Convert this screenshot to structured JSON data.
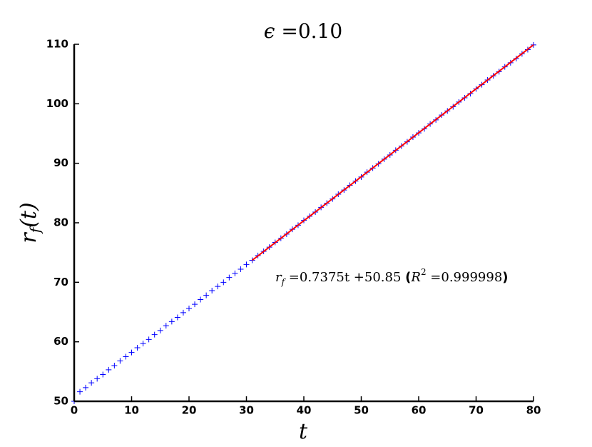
{
  "chart_data": {
    "type": "scatter",
    "title_parts": [
      "ϵ",
      " =0.10"
    ],
    "xlabel": "t",
    "ylabel_parts": [
      "r",
      "f",
      "(t)"
    ],
    "annotation_parts": [
      "r",
      "f",
      " =0.7375t +50.85 ",
      "(",
      "R",
      "2",
      " =0.999998",
      ")"
    ],
    "xlim": [
      0,
      80
    ],
    "ylim": [
      50,
      110
    ],
    "xticks": [
      0,
      10,
      20,
      30,
      40,
      50,
      60,
      70,
      80
    ],
    "yticks": [
      50,
      60,
      70,
      80,
      90,
      100,
      110
    ],
    "series": [
      {
        "style": "marker",
        "color": "#0000ff",
        "x": [
          0,
          1,
          2,
          3,
          4,
          5,
          6,
          7,
          8,
          9,
          10,
          11,
          12,
          13,
          14,
          15,
          16,
          17,
          18,
          19,
          20,
          21,
          22,
          23,
          24,
          25,
          26,
          27,
          28,
          29,
          30,
          31,
          32,
          33,
          34,
          35,
          36,
          37,
          38,
          39,
          40,
          41,
          42,
          43,
          44,
          45,
          46,
          47,
          48,
          49,
          50,
          51,
          52,
          53,
          54,
          55,
          56,
          57,
          58,
          59,
          60,
          61,
          62,
          63,
          64,
          65,
          66,
          67,
          68,
          69,
          70,
          71,
          72,
          73,
          74,
          75,
          76,
          77,
          78,
          79,
          80
        ],
        "values": [
          50,
          51.6,
          52.3,
          53.1,
          53.8,
          54.5,
          55.3,
          56.0,
          56.8,
          57.5,
          58.2,
          59.0,
          59.7,
          60.4,
          61.2,
          61.9,
          62.7,
          63.4,
          64.1,
          64.9,
          65.6,
          66.3,
          67.1,
          67.8,
          68.6,
          69.3,
          70.0,
          70.8,
          71.5,
          72.2,
          73.0,
          73.7,
          74.5,
          75.2,
          75.9,
          76.7,
          77.4,
          78.1,
          78.9,
          79.6,
          80.4,
          81.1,
          81.8,
          82.6,
          83.3,
          84.0,
          84.8,
          85.5,
          86.3,
          87.0,
          87.7,
          88.5,
          89.2,
          89.9,
          90.7,
          91.4,
          92.2,
          92.9,
          93.6,
          94.4,
          95.1,
          95.8,
          96.6,
          97.3,
          98.1,
          98.8,
          99.5,
          100.3,
          101.0,
          101.7,
          102.5,
          103.2,
          104.0,
          104.7,
          105.4,
          106.2,
          106.9,
          107.6,
          108.4,
          109.1,
          109.9
        ]
      },
      {
        "style": "line",
        "color": "#ff0000",
        "x": [
          31,
          80
        ],
        "values": [
          73.7,
          109.9
        ]
      }
    ]
  }
}
